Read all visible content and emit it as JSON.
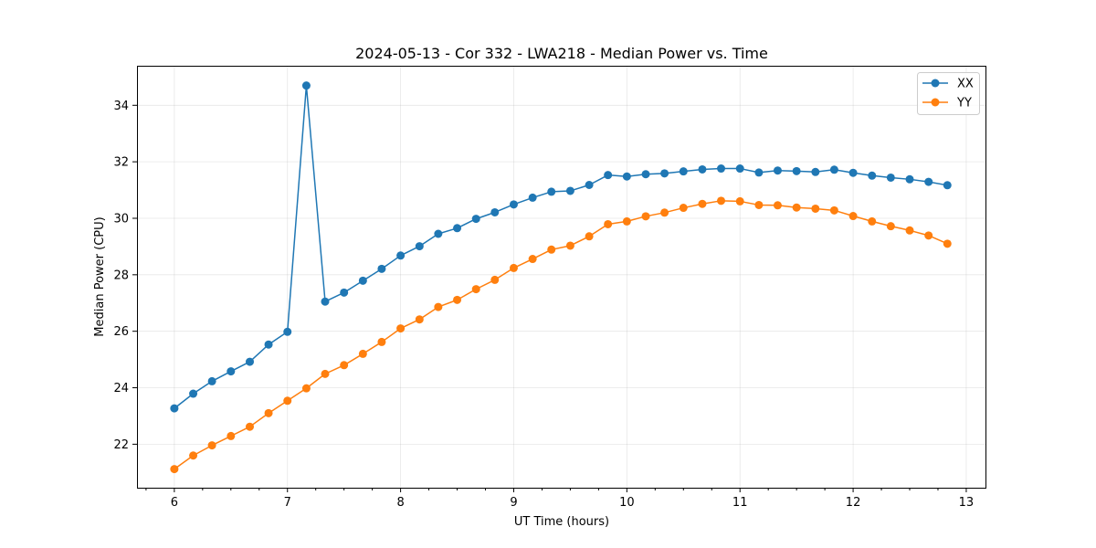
{
  "chart_data": {
    "type": "line",
    "title": "2024-05-13 - Cor 332 - LWA218 - Median Power vs. Time",
    "xlabel": "UT Time (hours)",
    "ylabel": "Median Power (CPU)",
    "xlim": [
      5.67,
      13.17
    ],
    "ylim": [
      20.46,
      35.4
    ],
    "xticks": [
      6,
      7,
      8,
      9,
      10,
      11,
      12,
      13
    ],
    "xtick_labels": [
      "6",
      "7",
      "8",
      "9",
      "10",
      "11",
      "12",
      "13"
    ],
    "xminor_ticks": [
      5.75,
      6.25,
      6.5,
      6.75,
      7.25,
      7.5,
      7.75,
      8.25,
      8.5,
      8.75,
      9.25,
      9.5,
      9.75,
      10.25,
      10.5,
      10.75,
      11.25,
      11.5,
      11.75,
      12.25,
      12.5,
      12.75
    ],
    "yticks": [
      22,
      24,
      26,
      28,
      30,
      32,
      34
    ],
    "ytick_labels": [
      "22",
      "24",
      "26",
      "28",
      "30",
      "32",
      "34"
    ],
    "grid": true,
    "legend_position": "top-right",
    "x": [
      6.0,
      6.167,
      6.333,
      6.5,
      6.667,
      6.833,
      7.0,
      7.167,
      7.333,
      7.5,
      7.667,
      7.833,
      8.0,
      8.167,
      8.333,
      8.5,
      8.667,
      8.833,
      9.0,
      9.167,
      9.333,
      9.5,
      9.667,
      9.833,
      10.0,
      10.167,
      10.333,
      10.5,
      10.667,
      10.833,
      11.0,
      11.167,
      11.333,
      11.5,
      11.667,
      11.833,
      12.0,
      12.167,
      12.333,
      12.5,
      12.667,
      12.833
    ],
    "series": [
      {
        "name": "XX",
        "color": "#1f77b4",
        "values": [
          23.27,
          23.79,
          24.23,
          24.58,
          24.92,
          25.53,
          25.98,
          34.7,
          27.05,
          27.37,
          27.79,
          28.21,
          28.68,
          29.01,
          29.45,
          29.65,
          29.98,
          30.21,
          30.49,
          30.73,
          30.94,
          30.97,
          31.18,
          31.53,
          31.48,
          31.56,
          31.59,
          31.66,
          31.73,
          31.76,
          31.76,
          31.62,
          31.69,
          31.67,
          31.64,
          31.72,
          31.61,
          31.51,
          31.44,
          31.38,
          31.29,
          31.17
        ]
      },
      {
        "name": "YY",
        "color": "#ff7f0e",
        "values": [
          21.12,
          21.6,
          21.96,
          22.29,
          22.62,
          23.1,
          23.54,
          23.98,
          24.49,
          24.8,
          25.2,
          25.62,
          26.1,
          26.42,
          26.86,
          27.11,
          27.49,
          27.82,
          28.24,
          28.56,
          28.89,
          29.03,
          29.36,
          29.79,
          29.89,
          30.07,
          30.2,
          30.37,
          30.51,
          30.62,
          30.6,
          30.47,
          30.46,
          30.38,
          30.34,
          30.28,
          30.08,
          29.89,
          29.72,
          29.57,
          29.39,
          29.1
        ]
      }
    ]
  }
}
